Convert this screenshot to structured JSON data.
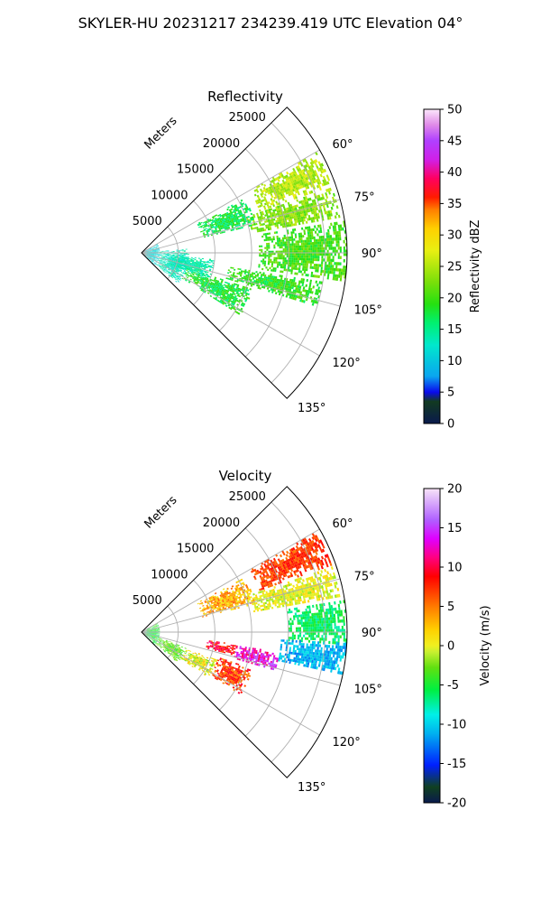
{
  "suptitle": "SKYLER-HU  20231217  234239.419 UTC Elevation 04°",
  "chart_data": [
    {
      "type": "heatmap",
      "projection": "polar-sector",
      "title": "Reflectivity",
      "range_label": "Meters",
      "range_ticks": [
        "5000",
        "10000",
        "15000",
        "20000",
        "25000"
      ],
      "range_tick_values": [
        5000,
        10000,
        15000,
        20000,
        25000
      ],
      "range_max": 28000,
      "azimuth_ticks": [
        "60°",
        "75°",
        "90°",
        "105°",
        "120°",
        "135°"
      ],
      "azimuth_tick_values": [
        60,
        75,
        90,
        105,
        120,
        135
      ],
      "azimuth_range": [
        45,
        135
      ],
      "grid": true,
      "colorbar": {
        "label": "Reflectivity dBZ",
        "ticks": [
          "0",
          "5",
          "10",
          "15",
          "20",
          "25",
          "30",
          "35",
          "40",
          "45",
          "50"
        ],
        "range": [
          0,
          50
        ],
        "colormap": "NWSRef"
      },
      "echoes": [
        {
          "az": [
            60,
            70
          ],
          "r": [
            17000,
            27500
          ],
          "value": 25,
          "spread": 3
        },
        {
          "az": [
            71,
            80
          ],
          "r": [
            15000,
            27500
          ],
          "value": 23,
          "spread": 3
        },
        {
          "az": [
            81,
            98
          ],
          "r": [
            16000,
            28000
          ],
          "value": 20,
          "spread": 3
        },
        {
          "az": [
            62,
            76
          ],
          "r": [
            8500,
            16000
          ],
          "value": 17,
          "spread": 3
        },
        {
          "az": [
            99,
            107
          ],
          "r": [
            12000,
            25000
          ],
          "value": 19,
          "spread": 3
        },
        {
          "az": [
            108,
            122
          ],
          "r": [
            6500,
            16000
          ],
          "value": 18,
          "spread": 3
        },
        {
          "az": [
            95,
            112
          ],
          "r": [
            4000,
            10000
          ],
          "value": 14,
          "spread": 2
        },
        {
          "az": [
            60,
            135
          ],
          "r": [
            0,
            2500
          ],
          "value": 11,
          "spread": 2
        },
        {
          "az": [
            85,
            130
          ],
          "r": [
            2500,
            6500
          ],
          "value": 13,
          "spread": 2
        }
      ]
    },
    {
      "type": "heatmap",
      "projection": "polar-sector",
      "title": "Velocity",
      "range_label": "Meters",
      "range_ticks": [
        "5000",
        "10000",
        "15000",
        "20000",
        "25000"
      ],
      "range_tick_values": [
        5000,
        10000,
        15000,
        20000,
        25000
      ],
      "range_max": 28000,
      "azimuth_ticks": [
        "60°",
        "75°",
        "90°",
        "105°",
        "120°",
        "135°"
      ],
      "azimuth_tick_values": [
        60,
        75,
        90,
        105,
        120,
        135
      ],
      "azimuth_range": [
        45,
        135
      ],
      "grid": true,
      "colorbar": {
        "label": "Velocity (m/s)",
        "ticks": [
          "-20",
          "-15",
          "-10",
          "-5",
          "0",
          "5",
          "10",
          "15",
          "20"
        ],
        "range": [
          -20,
          20
        ],
        "colormap": "NWSVel"
      },
      "echoes": [
        {
          "az": [
            60,
            70
          ],
          "r": [
            17000,
            27500
          ],
          "value": 7,
          "spread": 2
        },
        {
          "az": [
            71,
            80
          ],
          "r": [
            15000,
            27500
          ],
          "value": 0,
          "spread": 2
        },
        {
          "az": [
            81,
            93
          ],
          "r": [
            20000,
            28000
          ],
          "value": -6,
          "spread": 2
        },
        {
          "az": [
            93,
            102
          ],
          "r": [
            19000,
            28000
          ],
          "value": -11,
          "spread": 2
        },
        {
          "az": [
            62,
            76
          ],
          "r": [
            8500,
            16000
          ],
          "value": 3,
          "spread": 3
        },
        {
          "az": [
            98,
            106
          ],
          "r": [
            13000,
            19000
          ],
          "value": 13,
          "spread": 3
        },
        {
          "az": [
            97,
            104
          ],
          "r": [
            9000,
            13000
          ],
          "value": 9,
          "spread": 3
        },
        {
          "az": [
            108,
            122
          ],
          "r": [
            11000,
            16000
          ],
          "value": 7,
          "spread": 3
        },
        {
          "az": [
            110,
            124
          ],
          "r": [
            6500,
            11000
          ],
          "value": 0,
          "spread": 3
        },
        {
          "az": [
            108,
            130
          ],
          "r": [
            2500,
            6500
          ],
          "value": -3,
          "spread": 2
        },
        {
          "az": [
            60,
            135
          ],
          "r": [
            0,
            2500
          ],
          "value": -5,
          "spread": 3
        }
      ]
    }
  ]
}
